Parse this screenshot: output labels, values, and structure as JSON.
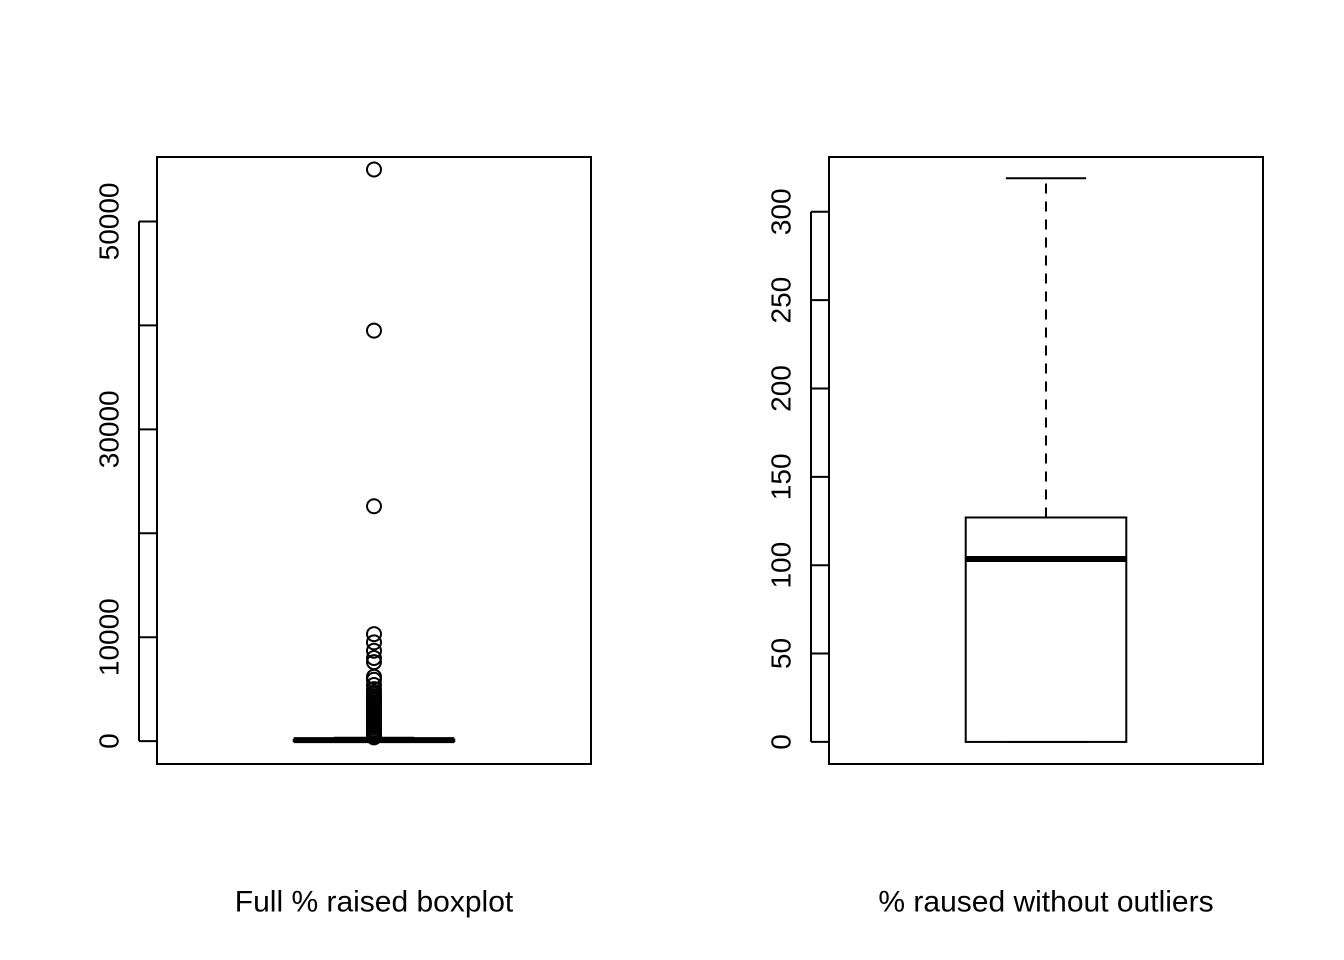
{
  "chart_data": [
    {
      "type": "boxplot",
      "title": "",
      "xlabel": "Full % raised boxplot",
      "ylabel": "",
      "ylim": [
        -2200,
        56200
      ],
      "yticks": [
        0,
        10000,
        20000,
        30000,
        40000,
        50000
      ],
      "ytick_labels": [
        "0",
        "10000",
        "",
        "30000",
        "",
        "50000"
      ],
      "grid": false,
      "box": {
        "min": 0,
        "q1": 0,
        "median": 100,
        "q3": 130,
        "max": 320
      },
      "outliers": [
        55000,
        39500,
        22600,
        10300,
        9500,
        8700,
        8000,
        7600,
        6200,
        5900,
        5400,
        5000,
        4700,
        4500,
        4300,
        4100,
        3900,
        3700,
        3500,
        3300,
        3100,
        2900,
        2700,
        2500,
        2300,
        2100,
        1900,
        1700,
        1500,
        1300,
        1100,
        950,
        800,
        700,
        600,
        500,
        420,
        360
      ]
    },
    {
      "type": "boxplot",
      "title": "",
      "xlabel": "% raused without outliers",
      "ylabel": "",
      "ylim": [
        -12.5,
        331
      ],
      "yticks": [
        0,
        50,
        100,
        150,
        200,
        250,
        300
      ],
      "ytick_labels": [
        "0",
        "50",
        "100",
        "150",
        "200",
        "250",
        "300"
      ],
      "grid": false,
      "box": {
        "min": 0,
        "q1": 0,
        "median": 103.5,
        "q3": 127,
        "max": 319
      },
      "whisker_style": "dashed",
      "outliers": []
    }
  ]
}
